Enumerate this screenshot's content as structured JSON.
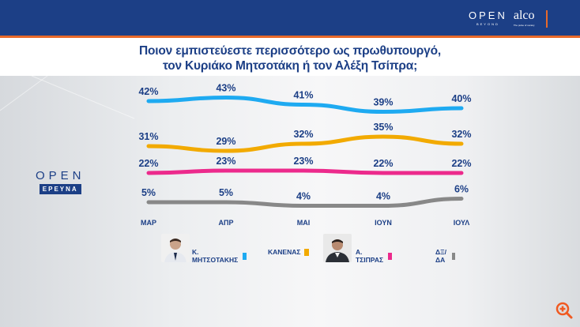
{
  "header": {
    "brand_open": "OPEN",
    "brand_open_sub": "BEYOND",
    "brand_alco": "alco",
    "brand_alco_sub": "The pulse of society"
  },
  "title_line1": "Ποιον εμπιστεύεστε περισσότερο ως πρωθυπουργό,",
  "title_line2": "τον Κυριάκο Μητσοτάκη ή τον Αλέξη Τσίπρα;",
  "side_logo": {
    "word": "OPEN",
    "sub": "ΕΡΕΥΝΑ"
  },
  "colors": {
    "header": "#1c3f86",
    "accent": "#e8692a",
    "mitsotakis": "#1eaaf1",
    "kanenas": "#f2aa00",
    "tsipras": "#ec2a8c",
    "dxda": "#888888"
  },
  "legend": [
    {
      "label": "Κ. ΜΗΤΣΟΤΑΚΗΣ",
      "color": "#1eaaf1",
      "photo": true
    },
    {
      "label": "ΚΑΝΕΝΑΣ",
      "color": "#f2aa00",
      "photo": false
    },
    {
      "label": "Α. ΤΣΙΠΡΑΣ",
      "color": "#ec2a8c",
      "photo": true
    },
    {
      "label": "ΔΞ/ΔΑ",
      "color": "#888888",
      "photo": false
    }
  ],
  "chart_data": {
    "type": "line",
    "title": "Ποιον εμπιστεύεστε περισσότερο ως πρωθυπουργό, τον Κυριάκο Μητσοτάκη ή τον Αλέξη Τσίπρα;",
    "categories": [
      "ΜΑΡ",
      "ΑΠΡ",
      "ΜΑΙ",
      "ΙΟΥΝ",
      "ΙΟΥΛ"
    ],
    "series": [
      {
        "name": "Κ. ΜΗΤΣΟΤΑΚΗΣ",
        "color": "#1eaaf1",
        "values": [
          42,
          43,
          41,
          39,
          40
        ]
      },
      {
        "name": "ΚΑΝΕΝΑΣ",
        "color": "#f2aa00",
        "values": [
          31,
          29,
          32,
          35,
          32
        ]
      },
      {
        "name": "Α. ΤΣΙΠΡΑΣ",
        "color": "#ec2a8c",
        "values": [
          22,
          23,
          23,
          22,
          22
        ]
      },
      {
        "name": "ΔΞ/ΔΑ",
        "color": "#888888",
        "values": [
          5,
          5,
          4,
          4,
          6
        ]
      }
    ],
    "value_suffix": "%",
    "xlabel": "",
    "ylabel": "",
    "grid": false,
    "legend_position": "bottom"
  },
  "zoom_icon": "zoom-in-icon"
}
